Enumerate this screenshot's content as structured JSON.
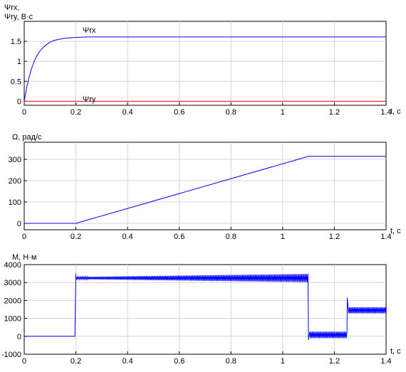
{
  "chart_data": [
    {
      "type": "line",
      "ylabel_lines": [
        "Ψrx,",
        "Ψry, В·с"
      ],
      "xlabel": "t, c",
      "xlim": [
        0,
        1.4
      ],
      "ylim": [
        -0.1,
        2.0
      ],
      "xticks": [
        "0",
        "0.2",
        "0.4",
        "0.6",
        "0.8",
        "1",
        "1.2",
        "1.4"
      ],
      "yticks": [
        "0",
        "0.5",
        "1",
        "1.5"
      ],
      "ytick_values": [
        0,
        0.5,
        1,
        1.5
      ],
      "grid": true,
      "series": [
        {
          "name": "Ψrx",
          "color": "#0000ff",
          "x": [
            0,
            0.01,
            0.02,
            0.03,
            0.04,
            0.05,
            0.06,
            0.08,
            0.1,
            0.12,
            0.15,
            0.2,
            0.25,
            1.4
          ],
          "y": [
            0,
            0.36,
            0.63,
            0.85,
            1.02,
            1.15,
            1.25,
            1.39,
            1.48,
            1.53,
            1.57,
            1.6,
            1.61,
            1.61
          ]
        },
        {
          "name": "Ψry",
          "color": "#ff0000",
          "x": [
            0,
            1.4
          ],
          "y": [
            0,
            0
          ]
        }
      ]
    },
    {
      "type": "line",
      "ylabel": "Ω, рад/с",
      "xlabel": "t, c",
      "xlim": [
        0,
        1.4
      ],
      "ylim": [
        -30,
        380
      ],
      "xticks": [
        "0",
        "0.2",
        "0.4",
        "0.6",
        "0.8",
        "1",
        "1.2",
        "1.4"
      ],
      "yticks": [
        "0",
        "100",
        "200",
        "300"
      ],
      "ytick_values": [
        0,
        100,
        200,
        300
      ],
      "grid": true,
      "series": [
        {
          "color": "#0000ff",
          "x": [
            0,
            0.2,
            1.1,
            1.4
          ],
          "y": [
            0,
            0,
            314,
            314
          ]
        }
      ]
    },
    {
      "type": "line",
      "ylabel": "M, Н·м",
      "xlabel": "t, c",
      "xlim": [
        0,
        1.4
      ],
      "ylim": [
        -1000,
        4000
      ],
      "xticks": [
        "0",
        "0.2",
        "0.4",
        "0.6",
        "0.8",
        "1",
        "1.2",
        "1.4"
      ],
      "yticks": [
        "4000",
        "3000",
        "2000",
        "1000",
        "0",
        "-1000"
      ],
      "ytick_values": [
        4000,
        3000,
        2000,
        1000,
        0,
        -1000
      ],
      "grid": true,
      "series": [
        {
          "color": "#0000ff",
          "segments": [
            {
              "x0": 0,
              "x1": 0.198,
              "mean": 0,
              "ripple0": 0,
              "ripple1": 0
            },
            {
              "x0": 0.2,
              "x1": 0.2,
              "spike": 3500
            },
            {
              "x0": 0.2,
              "x1": 1.1,
              "mean": 3250,
              "ripple0": 60,
              "ripple1": 230
            },
            {
              "x0": 1.1,
              "x1": 1.105,
              "spike": -200
            },
            {
              "x0": 1.105,
              "x1": 1.25,
              "mean": 80,
              "ripple0": 180,
              "ripple1": 180
            },
            {
              "x0": 1.25,
              "x1": 1.253,
              "spike": 2150
            },
            {
              "x0": 1.253,
              "x1": 1.4,
              "mean": 1450,
              "ripple0": 170,
              "ripple1": 170
            }
          ]
        }
      ]
    }
  ]
}
